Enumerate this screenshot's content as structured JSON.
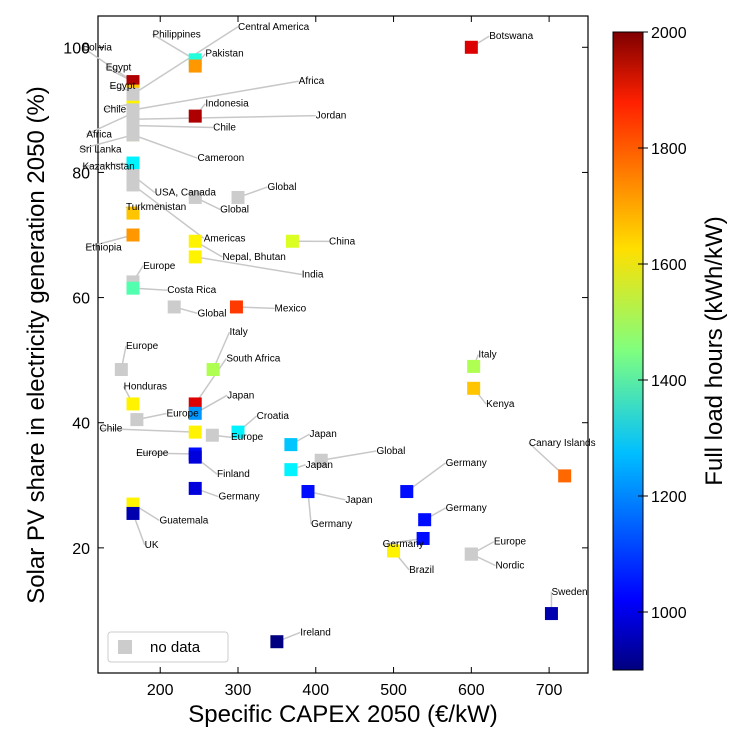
{
  "chart_data": {
    "type": "scatter",
    "xlabel": "Specific CAPEX 2050 (€/kW)",
    "ylabel": "Solar PV share in electricity generation 2050 (%)",
    "xlim": [
      120,
      750
    ],
    "ylim": [
      0,
      105
    ],
    "xticks": [
      200,
      300,
      400,
      500,
      600,
      700
    ],
    "yticks": [
      20,
      40,
      60,
      80,
      100
    ],
    "colorbar": {
      "label": "Full load hours (kWh/kW)",
      "range": [
        900,
        2000
      ],
      "ticks": [
        1000,
        1200,
        1400,
        1600,
        1800,
        2000
      ],
      "colormap": "jet"
    },
    "legend": {
      "entry": "no data",
      "color": "#cccccc",
      "location": "lower-left"
    },
    "nodata_color": "#cccccc",
    "points": [
      {
        "label": "Bolivia",
        "x": 165,
        "y": 94.5,
        "flh": 1900,
        "lx": 100,
        "ly": 99.5
      },
      {
        "label": "Egypt",
        "x": 165,
        "y": 94.5,
        "flh": 1950,
        "lx": 130,
        "ly": 96.3
      },
      {
        "label": "Egypt",
        "x": 165,
        "y": 93.0,
        "flh": 1650,
        "lx": 135,
        "ly": 93.3
      },
      {
        "label": "Chile",
        "x": 165,
        "y": 91.0,
        "flh": 1600,
        "lx": 127,
        "ly": 89.6
      },
      {
        "label": "Africa",
        "x": 165,
        "y": 89.5,
        "flh": 1550,
        "lx": 105,
        "ly": 85.6
      },
      {
        "label": "Sri Lanka",
        "x": 165,
        "y": 86.0,
        "flh": 1500,
        "lx": 96,
        "ly": 83.2
      },
      {
        "label": "Kazakhstan",
        "x": 165,
        "y": 81.5,
        "flh": 1300,
        "lx": 100,
        "ly": 80.5
      },
      {
        "label": "USA, Canada",
        "x": 165,
        "y": 79.5,
        "flh": null,
        "lx": 193,
        "ly": 76.3
      },
      {
        "label": "Turkmenistan",
        "x": 165,
        "y": 73.5,
        "flh": 1650,
        "lx": 156,
        "ly": 74.0
      },
      {
        "label": "Ethiopia",
        "x": 165,
        "y": 70.0,
        "flh": 1700,
        "lx": 104,
        "ly": 67.5
      },
      {
        "label": "Philippines",
        "x": 245,
        "y": 98.0,
        "flh": 1350,
        "lx": 190,
        "ly": 101.6
      },
      {
        "label": "Pakistan",
        "x": 245,
        "y": 97.0,
        "flh": 1700,
        "lx": 258,
        "ly": 98.5
      },
      {
        "label": "Indonesia",
        "x": 245,
        "y": 89.0,
        "flh": 1950,
        "lx": 258,
        "ly": 90.5
      },
      {
        "label": "Central America",
        "x": 165,
        "y": 92.5,
        "flh": null,
        "lx": 300,
        "ly": 102.8
      },
      {
        "label": "Africa",
        "x": 165,
        "y": 90.0,
        "flh": null,
        "lx": 378,
        "ly": 94.1
      },
      {
        "label": "Jordan",
        "x": 165,
        "y": 88.5,
        "flh": null,
        "lx": 400,
        "ly": 88.6
      },
      {
        "label": "Chile",
        "x": 165,
        "y": 87.5,
        "flh": null,
        "lx": 268,
        "ly": 86.7
      },
      {
        "label": "Cameroon",
        "x": 165,
        "y": 86.0,
        "flh": null,
        "lx": 248,
        "ly": 81.8
      },
      {
        "label": "Global",
        "x": 300,
        "y": 76.0,
        "flh": null,
        "lx": 338,
        "ly": 77.2
      },
      {
        "label": "Global",
        "x": 245,
        "y": 76.0,
        "flh": null,
        "lx": 277,
        "ly": 73.6
      },
      {
        "label": "Americas",
        "x": 165,
        "y": 78.0,
        "flh": null,
        "lx": 256,
        "ly": 69.0
      },
      {
        "label": "China",
        "x": 370,
        "y": 69.0,
        "flh": 1550,
        "lx": 417,
        "ly": 68.5
      },
      {
        "label": "Nepal, Bhutan",
        "x": 245,
        "y": 69.0,
        "flh": 1600,
        "lx": 280,
        "ly": 66.0
      },
      {
        "label": "India",
        "x": 245,
        "y": 66.5,
        "flh": 1600,
        "lx": 382,
        "ly": 63.2
      },
      {
        "label": "Europe",
        "x": 165,
        "y": 62.5,
        "flh": null,
        "lx": 178,
        "ly": 64.6
      },
      {
        "label": "Costa Rica",
        "x": 165,
        "y": 61.5,
        "flh": 1400,
        "lx": 209,
        "ly": 60.7
      },
      {
        "label": "Global",
        "x": 218,
        "y": 58.5,
        "flh": null,
        "lx": 248,
        "ly": 57.0
      },
      {
        "label": "Mexico",
        "x": 298,
        "y": 58.5,
        "flh": 1800,
        "lx": 347,
        "ly": 57.8
      },
      {
        "label": "Europe",
        "x": 150,
        "y": 48.5,
        "flh": null,
        "lx": 156,
        "ly": 51.8
      },
      {
        "label": "Honduras",
        "x": 165,
        "y": 43.0,
        "flh": 1600,
        "lx": 153,
        "ly": 45.3
      },
      {
        "label": "Italy",
        "x": 268,
        "y": 48.5,
        "flh": 1500,
        "lx": 289,
        "ly": 54.0
      },
      {
        "label": "South Africa",
        "x": 245,
        "y": 43.0,
        "flh": 1900,
        "lx": 285,
        "ly": 49.8
      },
      {
        "label": "Japan",
        "x": 245,
        "y": 41.5,
        "flh": 1200,
        "lx": 286,
        "ly": 43.9
      },
      {
        "label": "Europe",
        "x": 170,
        "y": 40.5,
        "flh": null,
        "lx": 208,
        "ly": 41.0
      },
      {
        "label": "Chile",
        "x": 245,
        "y": 38.5,
        "flh": 1600,
        "lx": 122,
        "ly": 38.6
      },
      {
        "label": "Croatia",
        "x": 300,
        "y": 38.5,
        "flh": 1300,
        "lx": 324,
        "ly": 40.6
      },
      {
        "label": "Europe",
        "x": 267,
        "y": 38.0,
        "flh": null,
        "lx": 291,
        "ly": 37.2
      },
      {
        "label": "Europe",
        "x": 245,
        "y": 35.0,
        "flh": 1050,
        "lx": 169,
        "ly": 34.7
      },
      {
        "label": "Finland",
        "x": 245,
        "y": 34.5,
        "flh": 1000,
        "lx": 273,
        "ly": 31.3
      },
      {
        "label": "Germany",
        "x": 245,
        "y": 29.5,
        "flh": 1000,
        "lx": 275,
        "ly": 27.7
      },
      {
        "label": "Japan",
        "x": 368,
        "y": 36.5,
        "flh": 1250,
        "lx": 392,
        "ly": 37.7
      },
      {
        "label": "Japan",
        "x": 368,
        "y": 32.5,
        "flh": 1300,
        "lx": 387,
        "ly": 32.8
      },
      {
        "label": "Global",
        "x": 407,
        "y": 34.0,
        "flh": null,
        "lx": 478,
        "ly": 35.0
      },
      {
        "label": "Japan",
        "x": 390,
        "y": 29.0,
        "flh": 1050,
        "lx": 438,
        "ly": 27.2
      },
      {
        "label": "Germany",
        "x": 390,
        "y": 29.0,
        "flh": 1050,
        "lx": 394,
        "ly": 23.3
      },
      {
        "label": "Germany",
        "x": 517,
        "y": 29.0,
        "flh": 1050,
        "lx": 567,
        "ly": 33.1
      },
      {
        "label": "Germany",
        "x": 540,
        "y": 24.5,
        "flh": 1050,
        "lx": 567,
        "ly": 25.9
      },
      {
        "label": "Germany",
        "x": 538,
        "y": 21.5,
        "flh": 1050,
        "lx": 486,
        "ly": 20.1
      },
      {
        "label": "Brazil",
        "x": 500,
        "y": 19.5,
        "flh": 1600,
        "lx": 520,
        "ly": 16.0
      },
      {
        "label": "Europe",
        "x": 600,
        "y": 19.0,
        "flh": null,
        "lx": 629,
        "ly": 20.5
      },
      {
        "label": "Nordic",
        "x": 600,
        "y": 19.0,
        "flh": null,
        "lx": 631,
        "ly": 16.7
      },
      {
        "label": "Guatemala",
        "x": 165,
        "y": 27.0,
        "flh": 1600,
        "lx": 199,
        "ly": 23.9
      },
      {
        "label": "UK",
        "x": 165,
        "y": 25.5,
        "flh": 950,
        "lx": 180,
        "ly": 20.0
      },
      {
        "label": "Botswana",
        "x": 600,
        "y": 100.0,
        "flh": 1900,
        "lx": 623,
        "ly": 101.3
      },
      {
        "label": "Italy",
        "x": 603,
        "y": 49.0,
        "flh": 1500,
        "lx": 609,
        "ly": 50.4
      },
      {
        "label": "Kenya",
        "x": 603,
        "y": 45.5,
        "flh": 1650,
        "lx": 619,
        "ly": 42.5
      },
      {
        "label": "Canary Islands",
        "x": 720,
        "y": 31.5,
        "flh": 1750,
        "lx": 674,
        "ly": 36.3
      },
      {
        "label": "Sweden",
        "x": 703,
        "y": 9.5,
        "flh": 950,
        "lx": 703,
        "ly": 12.5
      },
      {
        "label": "Ireland",
        "x": 350,
        "y": 5.0,
        "flh": 900,
        "lx": 380,
        "ly": 6.0
      }
    ]
  }
}
